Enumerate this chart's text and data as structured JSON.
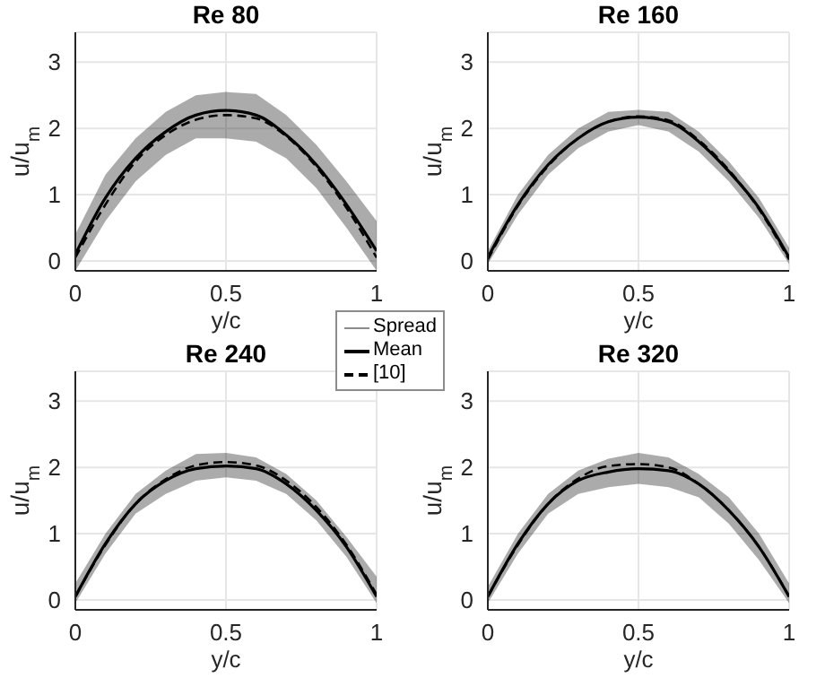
{
  "chart_data": [
    {
      "type": "line",
      "title": "Re 80",
      "xlabel": "y/c",
      "ylabel": "u/u$_{m}$",
      "annotations": [
        "Spread"
      ],
      "x": [
        0,
        0.1,
        0.2,
        0.3,
        0.4,
        0.5,
        0.6,
        0.7,
        0.8,
        0.9,
        1
      ],
      "xlim": [
        0,
        1
      ],
      "xticks": [
        0,
        0.5,
        1
      ],
      "ylim": [
        -0.15,
        3.45
      ],
      "yticks": [
        0,
        1,
        2,
        3
      ],
      "grid": true,
      "legend": "bottom right",
      "series": [
        {
          "name": "Mean",
          "color": "#000000",
          "line_style": "solid",
          "values": [
            0.1,
            0.95,
            1.55,
            1.95,
            2.2,
            2.27,
            2.2,
            1.9,
            1.45,
            0.85,
            0.15
          ],
          "lower": [
            -0.15,
            0.6,
            1.2,
            1.6,
            1.85,
            1.85,
            1.8,
            1.55,
            1.1,
            0.5,
            -0.15
          ],
          "upper": [
            0.4,
            1.3,
            1.85,
            2.25,
            2.5,
            2.55,
            2.52,
            2.2,
            1.75,
            1.2,
            0.6
          ]
        },
        {
          "name": "[10]",
          "color": "#000000",
          "line_style": "dashed",
          "values": [
            0.05,
            0.85,
            1.5,
            1.9,
            2.13,
            2.2,
            2.15,
            1.88,
            1.42,
            0.8,
            0.05
          ]
        }
      ]
    },
    {
      "type": "line",
      "title": "Re 160",
      "xlabel": "y/c",
      "ylabel": "u/u$_{m}$",
      "x": [
        0,
        0.1,
        0.2,
        0.3,
        0.4,
        0.5,
        0.6,
        0.7,
        0.8,
        0.9,
        1
      ],
      "xlim": [
        0,
        1
      ],
      "xticks": [
        0,
        0.5,
        1
      ],
      "ylim": [
        -0.15,
        3.45
      ],
      "yticks": [
        0,
        1,
        2,
        3
      ],
      "grid": true,
      "series": [
        {
          "color": "#000000",
          "line_style": "solid",
          "values": [
            0.05,
            0.85,
            1.45,
            1.85,
            2.1,
            2.17,
            2.1,
            1.8,
            1.35,
            0.8,
            0.05
          ],
          "lower": [
            -0.05,
            0.7,
            1.3,
            1.7,
            1.95,
            2.05,
            1.95,
            1.65,
            1.2,
            0.65,
            -0.05
          ],
          "upper": [
            0.15,
            1.0,
            1.6,
            2.0,
            2.25,
            2.28,
            2.25,
            1.95,
            1.5,
            0.95,
            0.2
          ]
        },
        {
          "color": "#000000",
          "line_style": "dashed",
          "values": [
            0.02,
            0.83,
            1.43,
            1.85,
            2.1,
            2.18,
            2.12,
            1.82,
            1.37,
            0.78,
            0.02
          ]
        }
      ]
    },
    {
      "type": "line",
      "title": "Re 240",
      "xlabel": "y/c",
      "ylabel": "u/u$_{m}$",
      "x": [
        0,
        0.1,
        0.2,
        0.3,
        0.4,
        0.5,
        0.6,
        0.7,
        0.8,
        0.9,
        1
      ],
      "xlim": [
        0,
        1
      ],
      "xticks": [
        0,
        0.5,
        1
      ],
      "ylim": [
        -0.15,
        3.45
      ],
      "yticks": [
        0,
        1,
        2,
        3
      ],
      "grid": true,
      "series": [
        {
          "color": "#000000",
          "line_style": "solid",
          "values": [
            0.05,
            0.85,
            1.45,
            1.8,
            1.98,
            2.02,
            1.98,
            1.75,
            1.35,
            0.8,
            0.05
          ],
          "lower": [
            -0.05,
            0.7,
            1.3,
            1.6,
            1.8,
            1.85,
            1.8,
            1.6,
            1.2,
            0.65,
            -0.05
          ],
          "upper": [
            0.25,
            1.0,
            1.6,
            1.95,
            2.2,
            2.22,
            2.15,
            1.9,
            1.5,
            0.95,
            0.35
          ]
        },
        {
          "color": "#000000",
          "line_style": "dashed",
          "values": [
            0.05,
            0.83,
            1.45,
            1.82,
            2.03,
            2.08,
            2.03,
            1.8,
            1.4,
            0.83,
            0.08
          ]
        }
      ]
    },
    {
      "type": "line",
      "title": "Re 320",
      "xlabel": "y/c",
      "ylabel": "u/u$_{m}$",
      "x": [
        0,
        0.1,
        0.2,
        0.3,
        0.4,
        0.5,
        0.6,
        0.7,
        0.8,
        0.9,
        1
      ],
      "xlim": [
        0,
        1
      ],
      "xticks": [
        0,
        0.5,
        1
      ],
      "ylim": [
        -0.15,
        3.45
      ],
      "yticks": [
        0,
        1,
        2,
        3
      ],
      "grid": true,
      "series": [
        {
          "color": "#000000",
          "line_style": "solid",
          "values": [
            0.05,
            0.85,
            1.45,
            1.8,
            1.93,
            1.98,
            1.95,
            1.75,
            1.35,
            0.8,
            0.05
          ],
          "lower": [
            -0.05,
            0.7,
            1.3,
            1.6,
            1.7,
            1.75,
            1.7,
            1.55,
            1.15,
            0.6,
            -0.05
          ],
          "upper": [
            0.2,
            1.0,
            1.6,
            1.95,
            2.13,
            2.22,
            2.15,
            1.9,
            1.55,
            1.0,
            0.25
          ]
        },
        {
          "color": "#000000",
          "line_style": "dashed",
          "values": [
            0.05,
            0.83,
            1.45,
            1.83,
            2.02,
            2.05,
            2.0,
            1.75,
            1.35,
            0.8,
            0.05
          ]
        }
      ]
    }
  ]
}
